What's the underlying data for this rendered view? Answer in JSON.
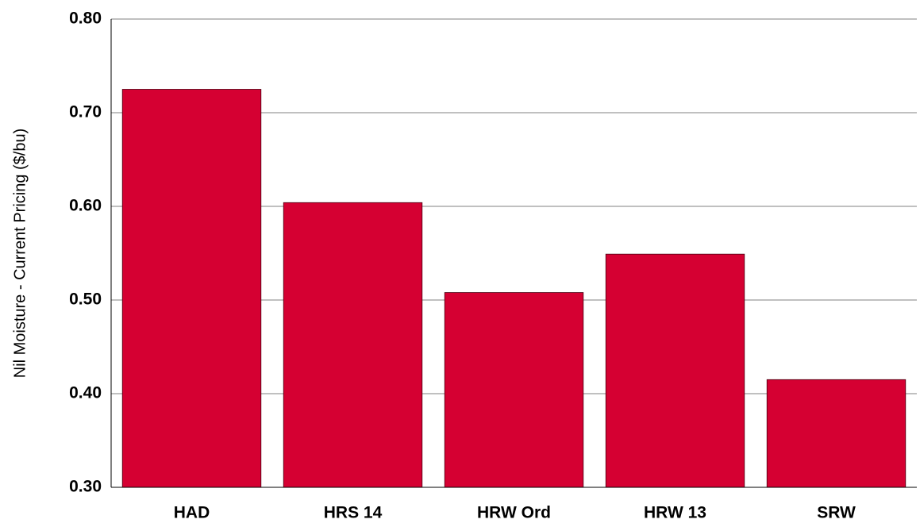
{
  "chart_data": {
    "type": "bar",
    "y_label": "Nil Moisture - Current Pricing ($/bu)",
    "categories": [
      "HAD",
      "HRS 14",
      "HRW Ord",
      "HRW 13",
      "SRW"
    ],
    "values": [
      0.725,
      0.604,
      0.508,
      0.549,
      0.415
    ],
    "color": "#d50032",
    "ylim": [
      0.3,
      0.8
    ],
    "yticks": [
      {
        "value": 0.3,
        "label": "0.30"
      },
      {
        "value": 0.4,
        "label": "0.40"
      },
      {
        "value": 0.5,
        "label": "0.50"
      },
      {
        "value": 0.6,
        "label": "0.60"
      },
      {
        "value": 0.7,
        "label": "0.70"
      },
      {
        "value": 0.8,
        "label": "0.80"
      }
    ],
    "grid": true
  }
}
